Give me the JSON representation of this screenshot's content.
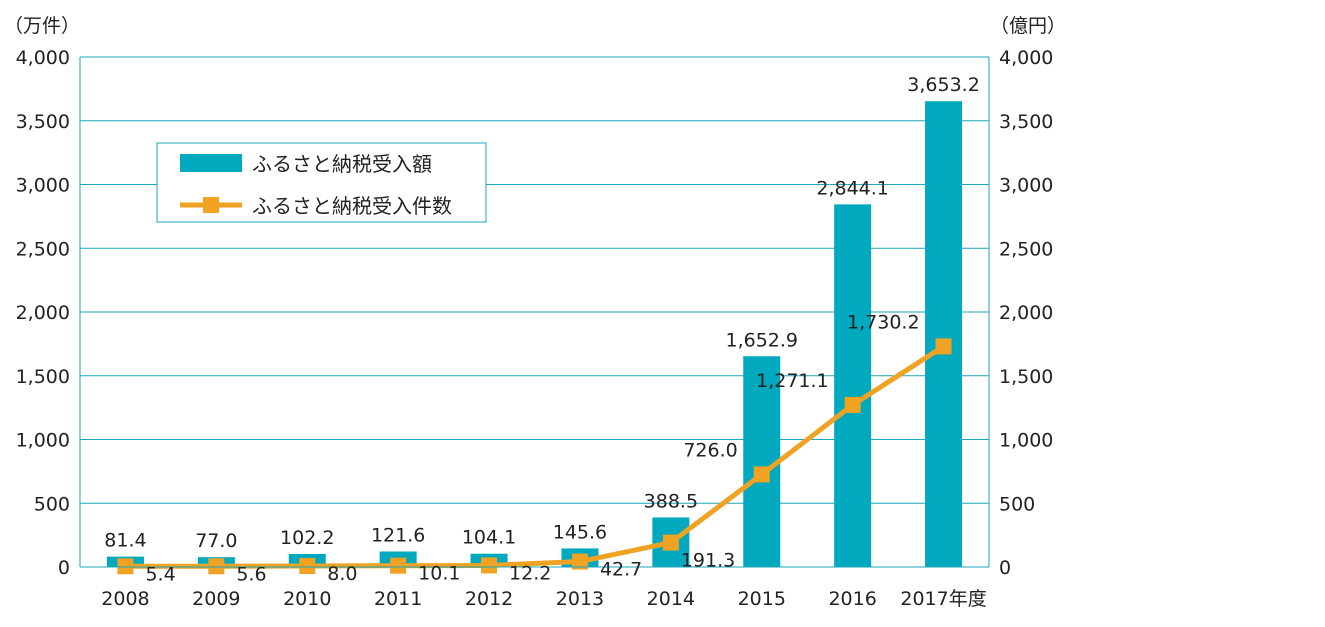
{
  "chart_data": {
    "type": "bar",
    "categories": [
      "2008",
      "2009",
      "2010",
      "2011",
      "2012",
      "2013",
      "2014",
      "2015",
      "2016",
      "2017年度"
    ],
    "series": [
      {
        "name": "ふるさと納税受入額",
        "type": "bar",
        "axis": "right",
        "values": [
          81.4,
          77.0,
          102.2,
          121.6,
          104.1,
          145.6,
          388.5,
          1652.9,
          2844.1,
          3653.2
        ],
        "labels": [
          "81.4",
          "77.0",
          "102.2",
          "121.6",
          "104.1",
          "145.6",
          "388.5",
          "1,652.9",
          "2,844.1",
          "3,653.2"
        ]
      },
      {
        "name": "ふるさと納税受入件数",
        "type": "line",
        "axis": "left",
        "values": [
          5.4,
          5.6,
          8.0,
          10.1,
          12.2,
          42.7,
          191.3,
          726.0,
          1271.1,
          1730.2
        ],
        "labels": [
          "5.4",
          "5.6",
          "8.0",
          "10.1",
          "12.2",
          "42.7",
          "191.3",
          "726.0",
          "1,271.1",
          "1,730.2"
        ]
      }
    ],
    "y_left_unit": "（万件）",
    "y_right_unit": "（億円）",
    "ylim": [
      0,
      4000
    ],
    "yticks": [
      0,
      500,
      1000,
      1500,
      2000,
      2500,
      3000,
      3500,
      4000
    ],
    "ytick_labels": [
      "0",
      "500",
      "1,000",
      "1,500",
      "2,000",
      "2,500",
      "3,000",
      "3,500",
      "4,000"
    ],
    "grid": true,
    "legend_position": "top-left",
    "colors": {
      "bar": "#00a9bd",
      "line": "#f0a322",
      "marker": "#f0a322",
      "axis": "#1aa7bb",
      "grid": "#1aa7bb"
    }
  }
}
